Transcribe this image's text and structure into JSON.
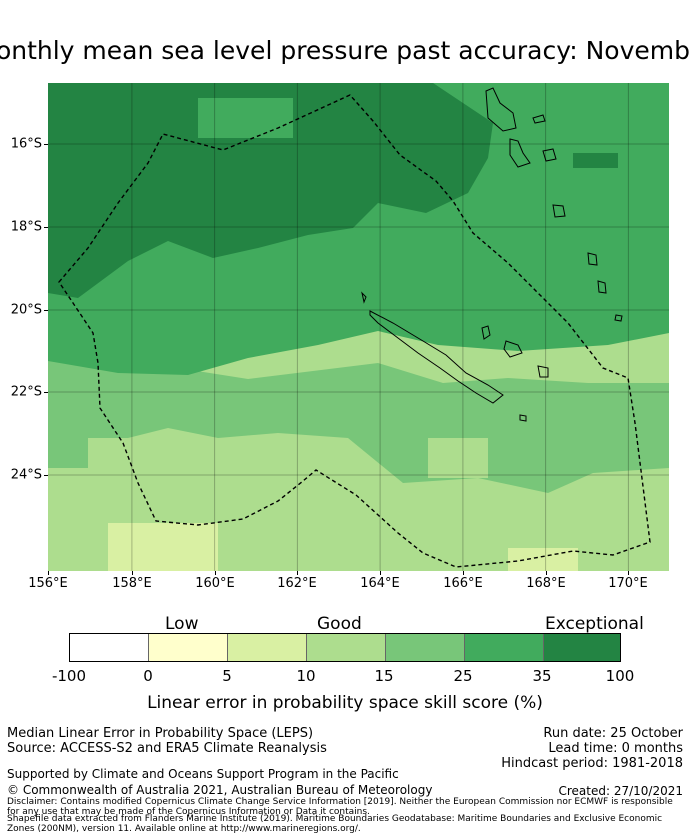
{
  "title": "Monthly mean sea level pressure past accuracy: November",
  "map": {
    "x_ticks": [
      "156°E",
      "158°E",
      "160°E",
      "162°E",
      "164°E",
      "166°E",
      "168°E",
      "170°E"
    ],
    "y_ticks": [
      "16°S",
      "18°S",
      "20°S",
      "22°S",
      "24°S"
    ],
    "lon_range": [
      156,
      171
    ],
    "lat_range": [
      -26.3,
      -14.6
    ]
  },
  "colorbar": {
    "categories": [
      "Low",
      "Good",
      "Exceptional"
    ],
    "ticks": [
      "-100",
      "0",
      "5",
      "10",
      "15",
      "25",
      "35",
      "100"
    ],
    "colors": [
      "#ffffff",
      "#ffffcc",
      "#d9f0a3",
      "#addd8e",
      "#78c679",
      "#41ab5d",
      "#238443"
    ],
    "label": "Linear error in probability space skill score (%)"
  },
  "info": {
    "method": "Median Linear Error in Probability Space (LEPS)",
    "source": "Source: ACCESS-S2 and ERA5 Climate Reanalysis",
    "run_date": "Run date: 25 October",
    "lead_time": "Lead time: 0 months",
    "hindcast": "Hindcast period: 1981-2018",
    "support": "Supported by Climate and Oceans Support Program in the Pacific",
    "copyright": "© Commonwealth of Australia 2021, Australian Bureau of Meteorology",
    "created": "Created: 27/10/2021",
    "disclaimer": "Disclaimer: Contains modified Copernicus Climate Change Service Information [2019]. Neither the European Commission nor ECMWF is responsible for any use that may be made of the Copernicus Information or Data it contains.",
    "shapefile": "Shapefile data extracted from Flanders Marine Institute (2019). Maritime Boundaries Geodatabase: Maritime Boundaries and Exclusive Economic Zones (200NM), version 11. Available online at http://www.marineregions.org/."
  }
}
